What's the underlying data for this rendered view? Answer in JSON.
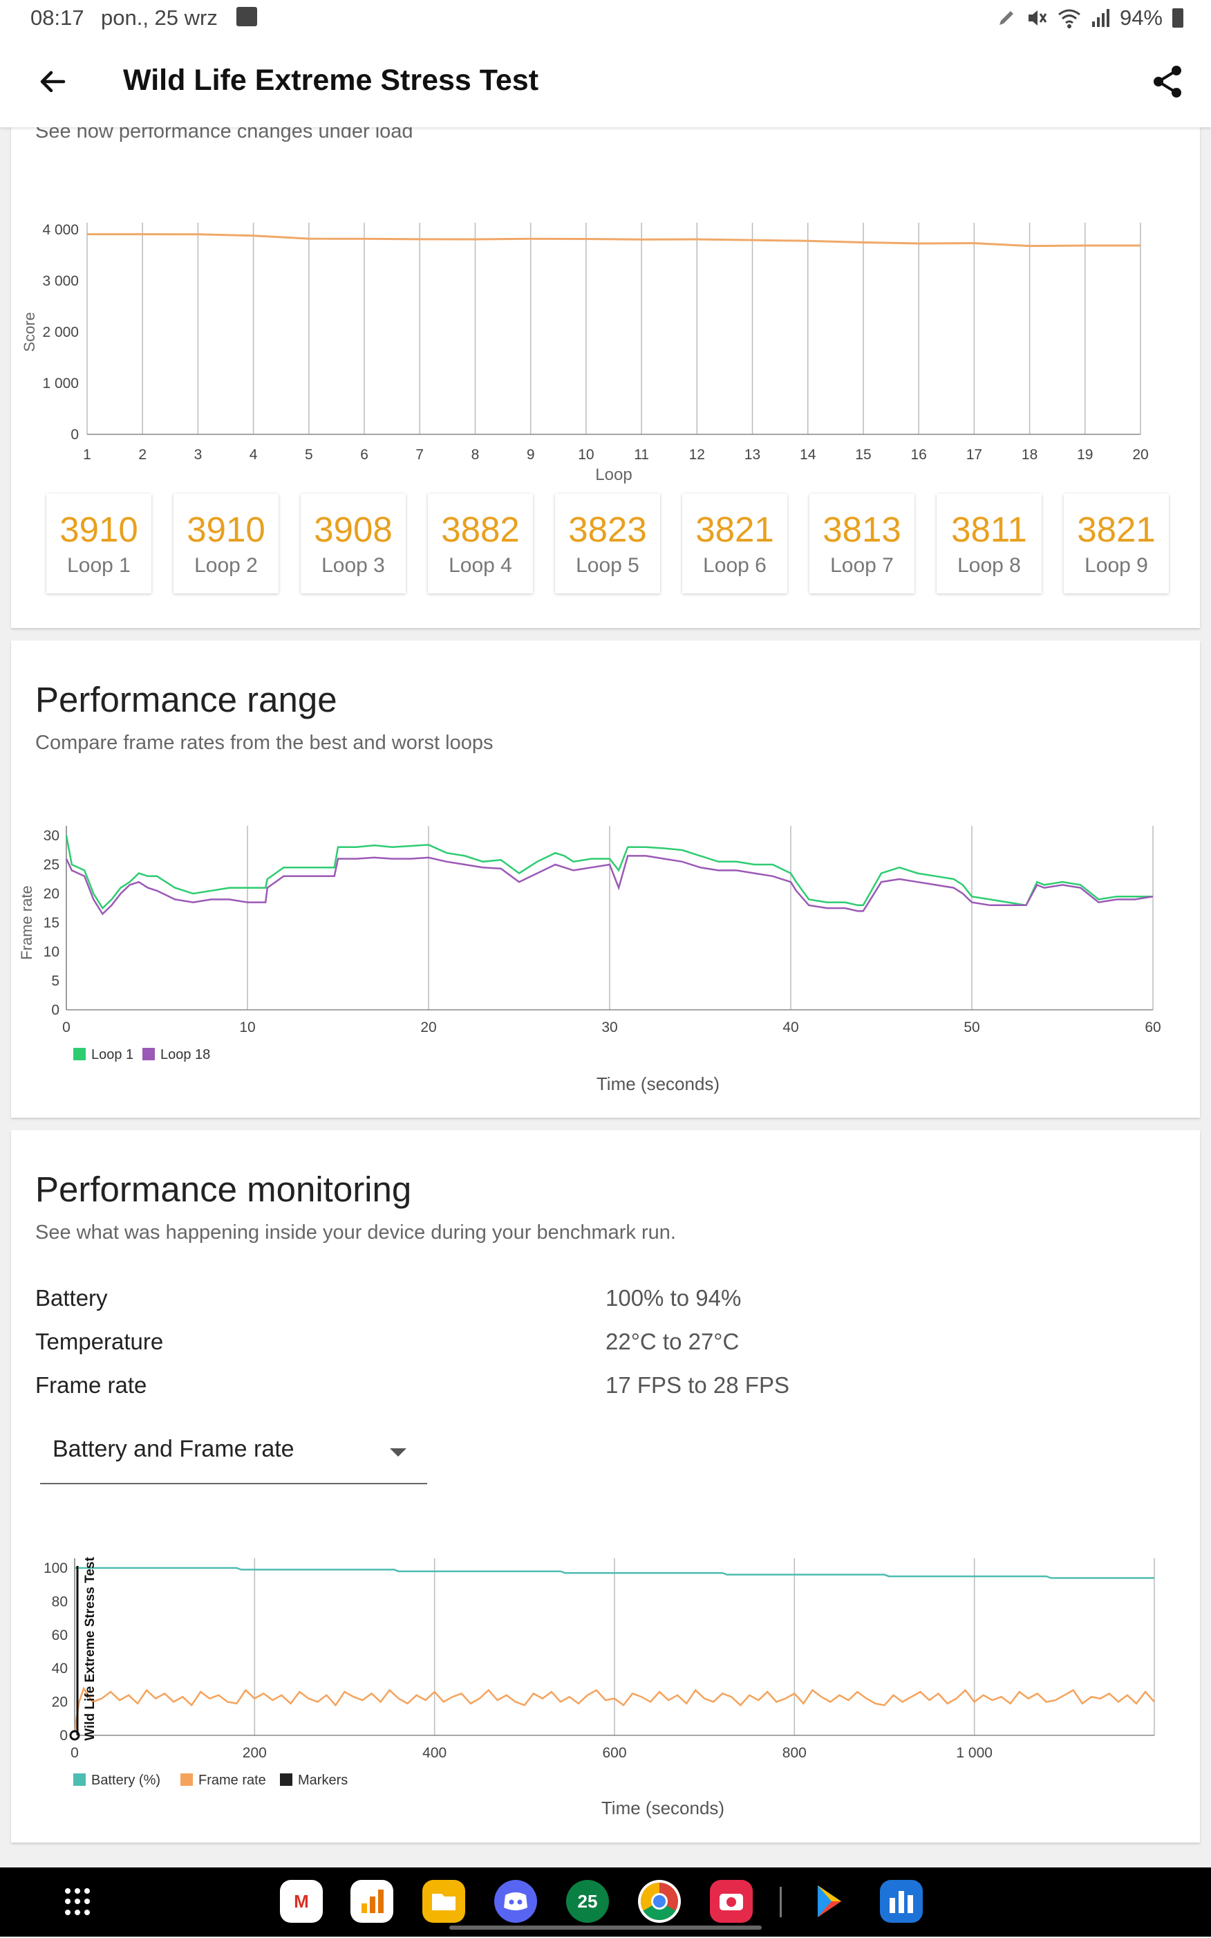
{
  "status": {
    "time": "08:17",
    "date": "pon., 25 wrz",
    "battery": "94%"
  },
  "app": {
    "title": "Wild Life Extreme Stress Test"
  },
  "stability": {
    "subtitle": "See how performance changes under load",
    "loops": [
      {
        "value": "3910",
        "label": "Loop 1"
      },
      {
        "value": "3910",
        "label": "Loop 2"
      },
      {
        "value": "3908",
        "label": "Loop 3"
      },
      {
        "value": "3882",
        "label": "Loop 4"
      },
      {
        "value": "3823",
        "label": "Loop 5"
      },
      {
        "value": "3821",
        "label": "Loop 6"
      },
      {
        "value": "3813",
        "label": "Loop 7"
      },
      {
        "value": "3811",
        "label": "Loop 8"
      },
      {
        "value": "3821",
        "label": "Loop 9"
      }
    ]
  },
  "range": {
    "title": "Performance range",
    "subtitle": "Compare frame rates from the best and worst loops"
  },
  "monitoring": {
    "title": "Performance monitoring",
    "subtitle": "See what was happening inside your device during your benchmark run.",
    "rows": [
      {
        "label": "Battery",
        "value": "100% to 94%"
      },
      {
        "label": "Temperature",
        "value": "22°C to 27°C"
      },
      {
        "label": "Frame rate",
        "value": "17 FPS to 28 FPS"
      }
    ],
    "dropdown": "Battery and Frame rate"
  },
  "chart_data": [
    {
      "type": "line",
      "xlabel": "Loop",
      "ylabel": "Score",
      "xticks": [
        "1",
        "2",
        "3",
        "4",
        "5",
        "6",
        "7",
        "8",
        "9",
        "10",
        "11",
        "12",
        "13",
        "14",
        "15",
        "16",
        "17",
        "18",
        "19",
        "20"
      ],
      "yticks": [
        "0",
        "1 000",
        "2 000",
        "3 000",
        "4 000"
      ],
      "ylim": [
        0,
        4000
      ],
      "grid": "vertical",
      "series": [
        {
          "color": "#f0a868",
          "x": [
            1,
            2,
            3,
            4,
            5,
            6,
            7,
            8,
            9,
            10,
            11,
            12,
            13,
            14,
            15,
            16,
            17,
            18,
            19,
            20
          ],
          "values": [
            3910,
            3910,
            3908,
            3882,
            3823,
            3821,
            3813,
            3811,
            3821,
            3818,
            3808,
            3810,
            3795,
            3780,
            3750,
            3730,
            3735,
            3680,
            3690,
            3690
          ]
        }
      ]
    },
    {
      "type": "line",
      "xlabel": "Time (seconds)",
      "ylabel": "Frame rate",
      "xticks": [
        "0",
        "10",
        "20",
        "30",
        "40",
        "50",
        "60"
      ],
      "yticks": [
        "0",
        "5",
        "10",
        "15",
        "20",
        "25",
        "30"
      ],
      "xlim": [
        0,
        60
      ],
      "ylim": [
        0,
        30
      ],
      "legend": "bottom-left",
      "series": [
        {
          "name": "Loop 1",
          "color": "#2ecc71",
          "x": [
            0,
            0.3,
            1,
            1.5,
            2,
            2.5,
            3,
            3.5,
            4,
            4.5,
            5,
            6,
            7,
            8,
            9,
            10,
            11,
            11.1,
            12,
            13,
            14,
            14.8,
            15,
            16,
            17,
            18,
            19,
            20,
            21,
            22,
            23,
            24,
            25,
            26,
            27,
            27.5,
            28,
            29,
            30,
            30.5,
            31,
            32,
            33,
            34,
            35,
            36,
            37,
            38,
            39,
            40,
            40.3,
            41,
            42,
            43,
            43.7,
            44,
            45,
            46,
            47,
            48,
            49,
            49.5,
            50,
            51,
            52,
            53,
            53.6,
            54,
            55,
            56,
            57,
            58,
            59,
            60
          ],
          "values": [
            30,
            25,
            24,
            20,
            17.5,
            19,
            21,
            22,
            23.5,
            23,
            23,
            21,
            20,
            20.5,
            21,
            21,
            21,
            22.5,
            24.5,
            24.5,
            24.5,
            24.5,
            28,
            28,
            28.3,
            28,
            28.2,
            28.4,
            27,
            26.5,
            25.5,
            25.8,
            23.5,
            25.5,
            27,
            26.5,
            25.5,
            26,
            26,
            24,
            28,
            28,
            27.8,
            27.5,
            26.5,
            25.5,
            25.5,
            25,
            25,
            23.5,
            22,
            19,
            18.5,
            18.5,
            18,
            18,
            23.5,
            24.5,
            23.5,
            23,
            22.5,
            21.5,
            19.5,
            19,
            18.5,
            18,
            22,
            21.5,
            22,
            21.5,
            19,
            19.5,
            19.5,
            19.5
          ]
        },
        {
          "name": "Loop 18",
          "color": "#9b59b6",
          "x": [
            0,
            0.3,
            1,
            1.5,
            2,
            2.5,
            3,
            3.5,
            4,
            4.5,
            5,
            6,
            7,
            8,
            9,
            10,
            11,
            11.1,
            12,
            13,
            14,
            14.8,
            15,
            16,
            17,
            18,
            19,
            20,
            21,
            22,
            23,
            24,
            25,
            26,
            27,
            27.5,
            28,
            29,
            30,
            30.5,
            31,
            32,
            33,
            34,
            35,
            36,
            37,
            38,
            39,
            40,
            40.3,
            41,
            42,
            43,
            43.7,
            44,
            45,
            46,
            47,
            48,
            49,
            49.5,
            50,
            51,
            52,
            53,
            53.6,
            54,
            55,
            56,
            57,
            58,
            59,
            60
          ],
          "values": [
            26,
            24,
            23,
            19,
            16.5,
            18,
            20,
            21.5,
            22,
            21,
            20.5,
            19,
            18.5,
            19,
            19,
            18.5,
            18.5,
            21,
            23,
            23,
            23,
            23,
            26,
            26,
            26.2,
            26,
            26,
            26.2,
            25.5,
            25,
            24.5,
            24.3,
            22,
            23.5,
            25,
            24.5,
            24,
            24.5,
            25,
            21,
            26.5,
            26.5,
            26,
            25.5,
            24.5,
            24,
            24,
            23.5,
            23,
            22,
            20.5,
            18,
            17.5,
            17.5,
            17,
            17,
            22,
            22.5,
            22,
            21.5,
            21,
            20,
            18.5,
            18,
            18,
            18,
            21.5,
            21,
            21.5,
            21,
            18.5,
            19,
            19,
            19.5
          ]
        }
      ]
    },
    {
      "type": "line",
      "xlabel": "Time (seconds)",
      "ylabel": "Wild Life Extreme Stress Test",
      "xticks": [
        "0",
        "200",
        "400",
        "600",
        "800",
        "1 000"
      ],
      "yticks": [
        "0",
        "20",
        "40",
        "60",
        "80",
        "100"
      ],
      "xlim": [
        0,
        1200
      ],
      "ylim": [
        0,
        100
      ],
      "legend": "bottom-left",
      "series": [
        {
          "name": "Battery (%)",
          "color": "#4dbdb0",
          "x": [
            0,
            180,
            185,
            355,
            360,
            540,
            545,
            720,
            725,
            900,
            905,
            1080,
            1085,
            1200
          ],
          "values": [
            100,
            100,
            99,
            99,
            98,
            98,
            97,
            97,
            96,
            96,
            95,
            95,
            94,
            94
          ]
        },
        {
          "name": "Frame rate",
          "color": "#f5a35c",
          "x": [
            0,
            2,
            5,
            10,
            15,
            20,
            30,
            40,
            50,
            60,
            70,
            80,
            90,
            100,
            110,
            120,
            130,
            140,
            150,
            160,
            170,
            180,
            190,
            200,
            210,
            220,
            230,
            240,
            250,
            260,
            270,
            280,
            290,
            300,
            310,
            320,
            330,
            340,
            350,
            360,
            370,
            380,
            390,
            400,
            410,
            420,
            430,
            440,
            450,
            460,
            470,
            480,
            490,
            500,
            510,
            520,
            530,
            540,
            550,
            560,
            570,
            580,
            590,
            600,
            610,
            620,
            630,
            640,
            650,
            660,
            670,
            680,
            690,
            700,
            710,
            720,
            730,
            740,
            750,
            760,
            770,
            780,
            790,
            800,
            810,
            820,
            830,
            840,
            850,
            860,
            870,
            880,
            890,
            900,
            910,
            920,
            930,
            940,
            950,
            960,
            970,
            980,
            990,
            1000,
            1010,
            1020,
            1030,
            1040,
            1050,
            1060,
            1070,
            1080,
            1090,
            1100,
            1110,
            1120,
            1130,
            1140,
            1150,
            1160,
            1170,
            1180,
            1190,
            1200
          ],
          "values": [
            0,
            10,
            20,
            28,
            24,
            20,
            22,
            26,
            21,
            24,
            19,
            27,
            22,
            25,
            20,
            23,
            18,
            26,
            22,
            24,
            20,
            19,
            27,
            22,
            25,
            21,
            24,
            19,
            26,
            22,
            20,
            24,
            18,
            26,
            23,
            21,
            25,
            20,
            27,
            22,
            19,
            24,
            21,
            26,
            20,
            23,
            25,
            19,
            22,
            27,
            21,
            24,
            20,
            18,
            25,
            22,
            26,
            20,
            23,
            19,
            24,
            27,
            21,
            22,
            18,
            25,
            23,
            20,
            26,
            21,
            24,
            19,
            27,
            22,
            20,
            25,
            23,
            18,
            24,
            21,
            26,
            20,
            22,
            25,
            19,
            27,
            23,
            20,
            24,
            21,
            26,
            22,
            19,
            18,
            24,
            20,
            23,
            26,
            21,
            25,
            19,
            22,
            27,
            20,
            24,
            21,
            23,
            19,
            26,
            22,
            25,
            20,
            21,
            24,
            27,
            19,
            23,
            22,
            25,
            20,
            24,
            19,
            26,
            20
          ]
        }
      ],
      "legend_extra": "Markers"
    }
  ]
}
